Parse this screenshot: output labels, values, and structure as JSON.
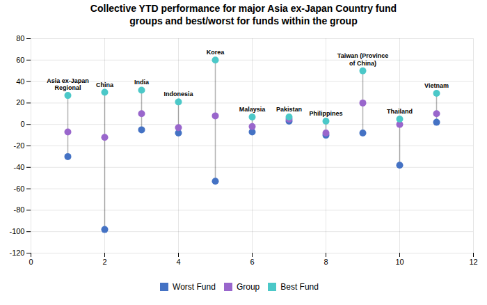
{
  "chart_data": {
    "type": "dumbbell",
    "title": "Collective YTD performance for major Asia ex-Japan Country fund\ngroups and best/worst for funds within the group",
    "categories": [
      "Asia ex-Japan\nRegional",
      "China",
      "India",
      "Indonesia",
      "Korea",
      "Malaysia",
      "Pakistan",
      "Philippines",
      "Taiwan (Province\nof China)",
      "Thailand",
      "Vietnam"
    ],
    "x": [
      1,
      2,
      3,
      4,
      5,
      6,
      7,
      8,
      9,
      10,
      11
    ],
    "series": [
      {
        "name": "Worst Fund",
        "color": "#4472C4",
        "values": [
          -30,
          -98,
          -5,
          -8,
          -53,
          -7,
          3,
          -10,
          -8,
          -38,
          2
        ]
      },
      {
        "name": "Group",
        "color": "#9966CC",
        "values": [
          -7,
          -12,
          10,
          -3,
          8,
          -2,
          5,
          -8,
          20,
          0,
          10
        ]
      },
      {
        "name": "Best Fund",
        "color": "#4BC8C8",
        "values": [
          27,
          30,
          32,
          21,
          60,
          7,
          7,
          3,
          50,
          5,
          29
        ]
      }
    ],
    "xlim": [
      0,
      12
    ],
    "xticks": [
      0,
      2,
      4,
      6,
      8,
      10,
      12
    ],
    "ylim": [
      -120,
      80
    ],
    "yticks": [
      -120,
      -100,
      -80,
      -60,
      -40,
      -20,
      0,
      20,
      40,
      60,
      80
    ],
    "grid": true,
    "legend": "bottom"
  }
}
